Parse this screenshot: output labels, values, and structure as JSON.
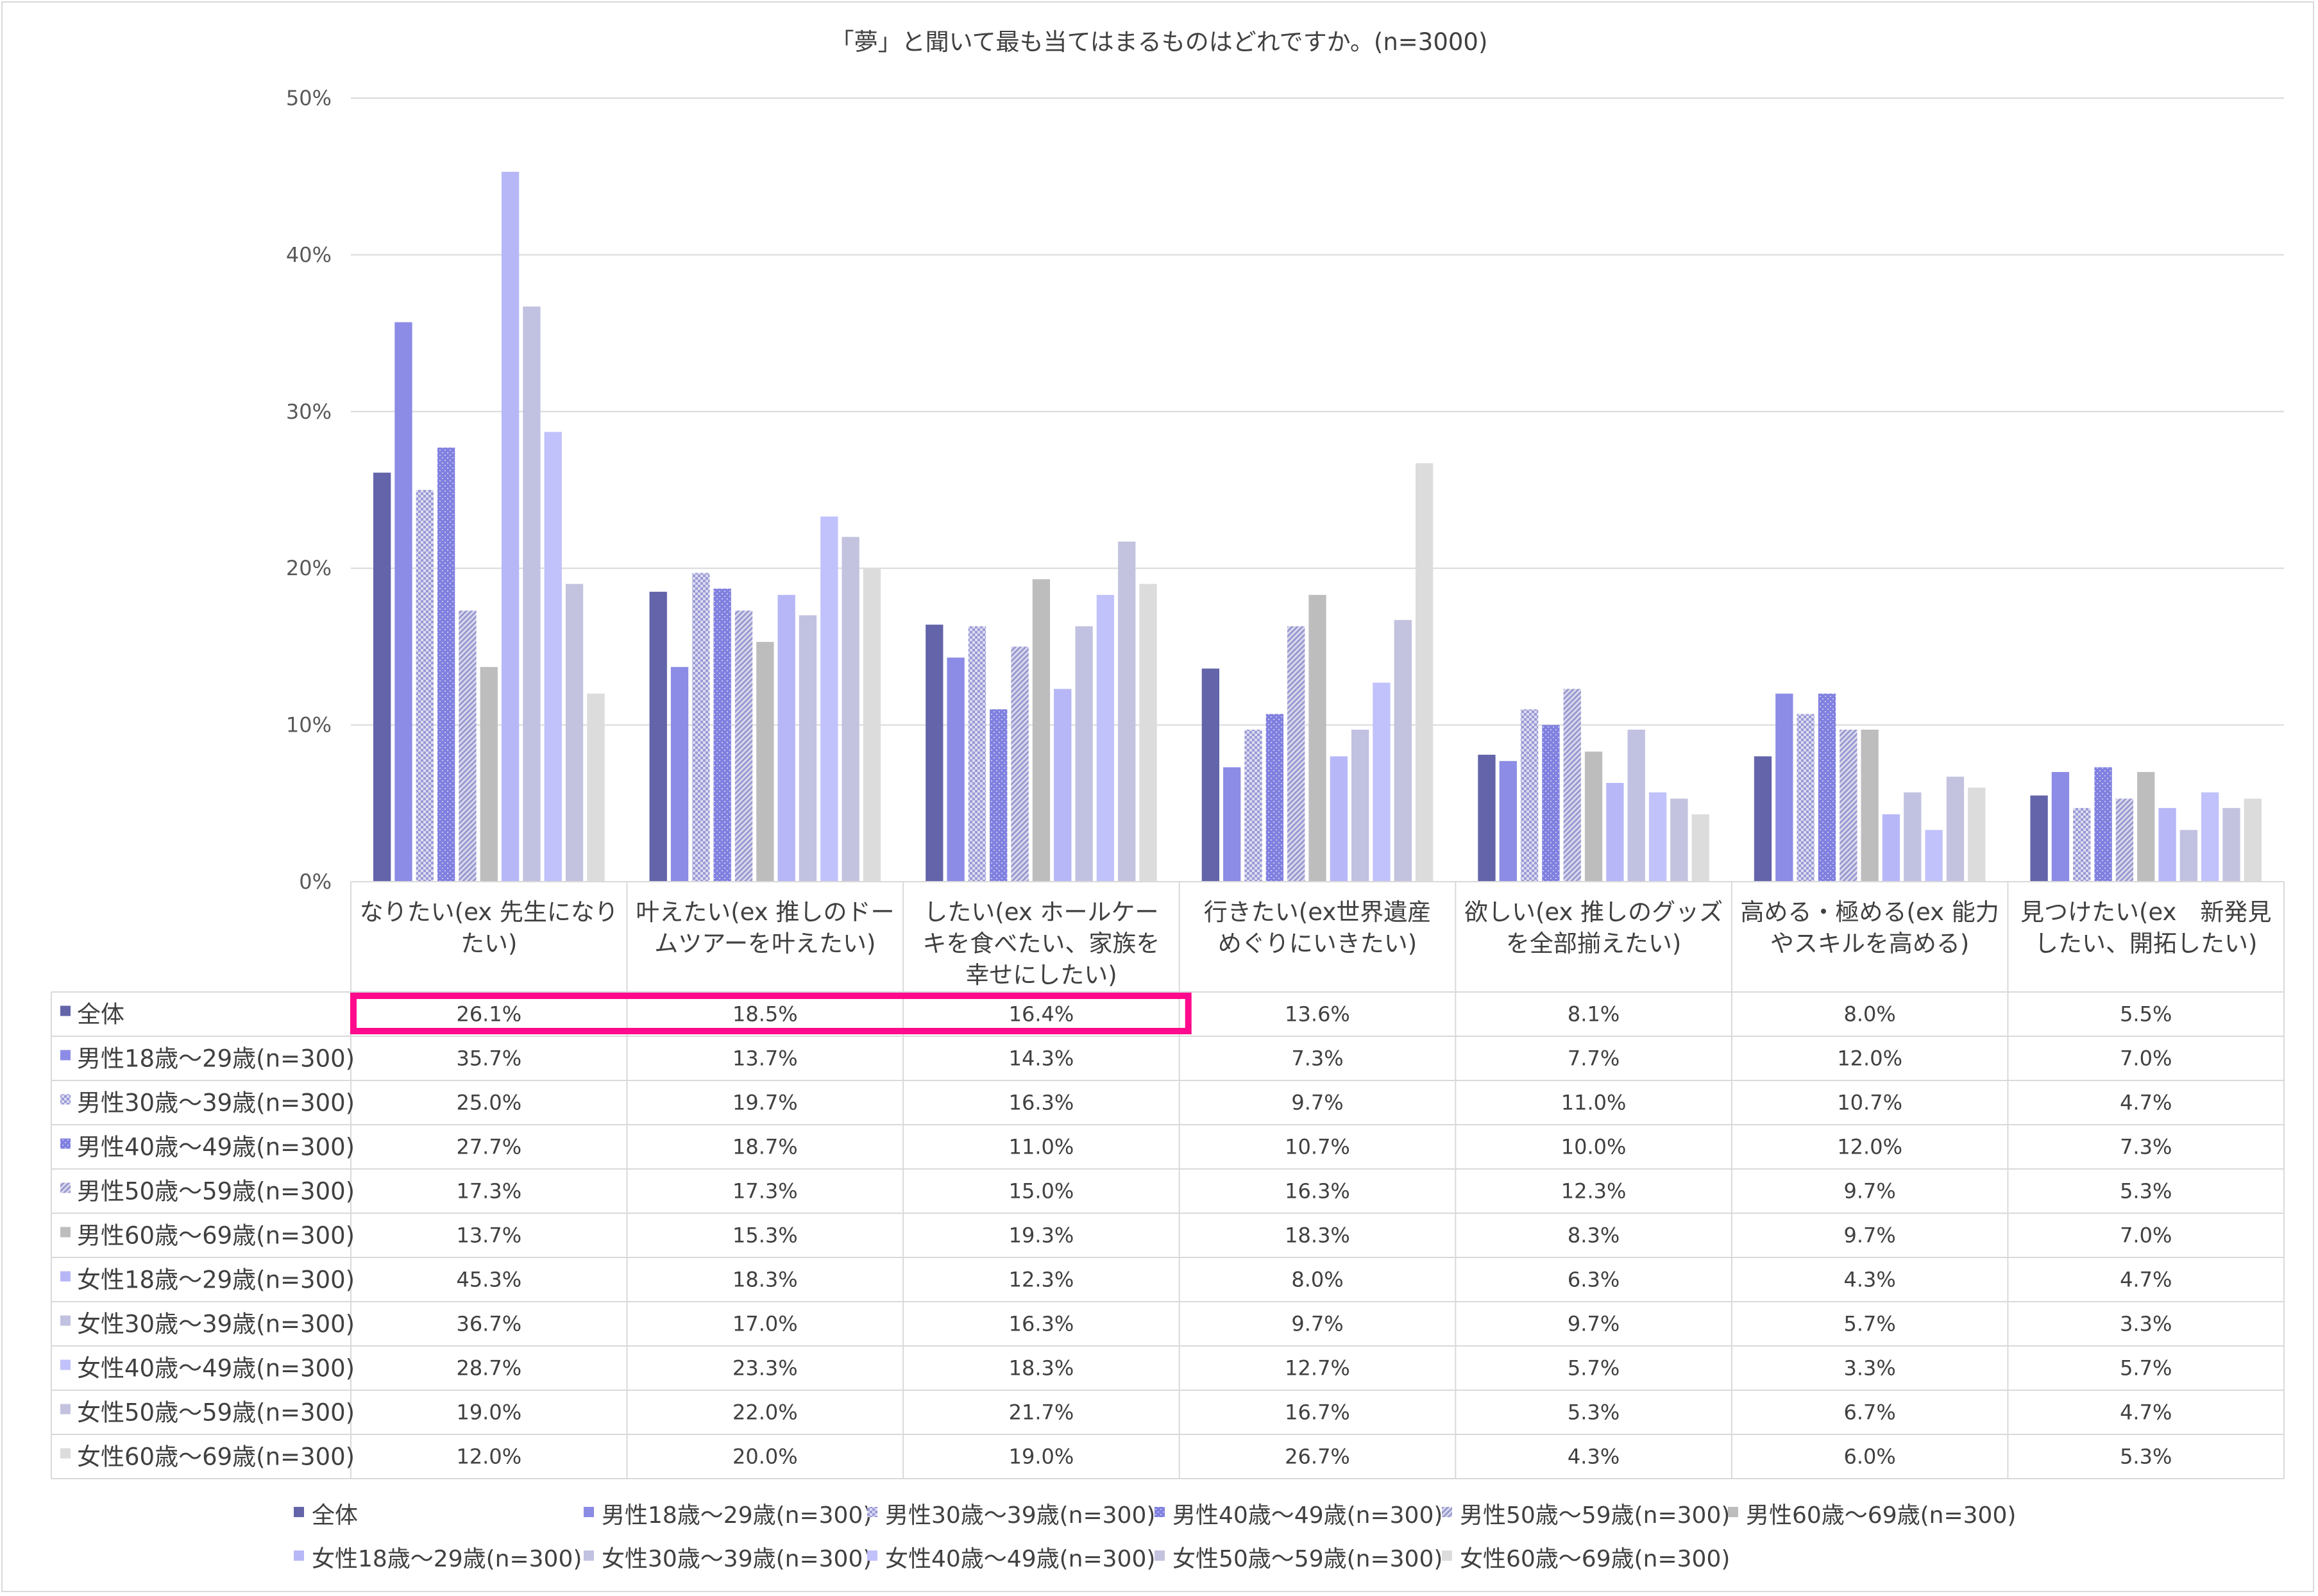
{
  "chart_data": {
    "type": "bar",
    "title": "「夢」と聞いて最も当てはまるものはどれですか。(n=3000)",
    "ylim": [
      0,
      50
    ],
    "yticks": [
      "0%",
      "10%",
      "20%",
      "30%",
      "40%",
      "50%"
    ],
    "grid": true,
    "legend_position": "bottom",
    "categories": [
      [
        "なりたい(ex 先生になり",
        "たい)"
      ],
      [
        "叶えたい(ex 推しのドー",
        "ムツアーを叶えたい)"
      ],
      [
        "したい(ex ホールケー",
        "キを食べたい、家族を",
        "幸せにしたい)"
      ],
      [
        "行きたい(ex世界遺産",
        "めぐりにいきたい)"
      ],
      [
        "欲しい(ex 推しのグッズ",
        "を全部揃えたい)"
      ],
      [
        "高める・極める(ex 能力",
        "やスキルを高める)"
      ],
      [
        "見つけたい(ex　新発見",
        "したい、開拓したい)"
      ]
    ],
    "series": [
      {
        "name": "全体",
        "color": "#6464aa",
        "pattern": "solid",
        "values": [
          26.1,
          18.5,
          16.4,
          13.6,
          8.1,
          8.0,
          5.5
        ],
        "labels": [
          "26.1%",
          "18.5%",
          "16.4%",
          "13.6%",
          "8.1%",
          "8.0%",
          "5.5%"
        ]
      },
      {
        "name": "男性18歳～29歳(n=300)",
        "color": "#8c8ce6",
        "pattern": "solid",
        "values": [
          35.7,
          13.7,
          14.3,
          7.3,
          7.7,
          12.0,
          7.0
        ],
        "labels": [
          "35.7%",
          "13.7%",
          "14.3%",
          "7.3%",
          "7.7%",
          "12.0%",
          "7.0%"
        ]
      },
      {
        "name": "男性30歳～39歳(n=300)",
        "color": "#9a9ad6",
        "pattern": "checker",
        "values": [
          25.0,
          19.7,
          16.3,
          9.7,
          11.0,
          10.7,
          4.7
        ],
        "labels": [
          "25.0%",
          "19.7%",
          "16.3%",
          "9.7%",
          "11.0%",
          "10.7%",
          "4.7%"
        ]
      },
      {
        "name": "男性40歳～49歳(n=300)",
        "color": "#8080e0",
        "pattern": "dots",
        "values": [
          27.7,
          18.7,
          11.0,
          10.7,
          10.0,
          12.0,
          7.3
        ],
        "labels": [
          "27.7%",
          "18.7%",
          "11.0%",
          "10.7%",
          "10.0%",
          "12.0%",
          "7.3%"
        ]
      },
      {
        "name": "男性50歳～59歳(n=300)",
        "color": "#9a9ad0",
        "pattern": "diag",
        "values": [
          17.3,
          17.3,
          15.0,
          16.3,
          12.3,
          9.7,
          5.3
        ],
        "labels": [
          "17.3%",
          "17.3%",
          "15.0%",
          "16.3%",
          "12.3%",
          "9.7%",
          "5.3%"
        ]
      },
      {
        "name": "男性60歳～69歳(n=300)",
        "color": "#bdbdbd",
        "pattern": "solid",
        "values": [
          13.7,
          15.3,
          19.3,
          18.3,
          8.3,
          9.7,
          7.0
        ],
        "labels": [
          "13.7%",
          "15.3%",
          "19.3%",
          "18.3%",
          "8.3%",
          "9.7%",
          "7.0%"
        ]
      },
      {
        "name": "女性18歳～29歳(n=300)",
        "color": "#b7b7f7",
        "pattern": "solid",
        "values": [
          45.3,
          18.3,
          12.3,
          8.0,
          6.3,
          4.3,
          4.7
        ],
        "labels": [
          "45.3%",
          "18.3%",
          "12.3%",
          "8.0%",
          "6.3%",
          "4.3%",
          "4.7%"
        ]
      },
      {
        "name": "女性30歳～39歳(n=300)",
        "color": "#c1c1e1",
        "pattern": "solid",
        "values": [
          36.7,
          17.0,
          16.3,
          9.7,
          9.7,
          5.7,
          3.3
        ],
        "labels": [
          "36.7%",
          "17.0%",
          "16.3%",
          "9.7%",
          "9.7%",
          "5.7%",
          "3.3%"
        ]
      },
      {
        "name": "女性40歳～49歳(n=300)",
        "color": "#c1c1fb",
        "pattern": "solid",
        "values": [
          28.7,
          23.3,
          18.3,
          12.7,
          5.7,
          3.3,
          5.7
        ],
        "labels": [
          "28.7%",
          "23.3%",
          "18.3%",
          "12.7%",
          "5.7%",
          "3.3%",
          "5.7%"
        ]
      },
      {
        "name": "女性50歳～59歳(n=300)",
        "color": "#c3c3df",
        "pattern": "solid",
        "values": [
          19.0,
          22.0,
          21.7,
          16.7,
          5.3,
          6.7,
          4.7
        ],
        "labels": [
          "19.0%",
          "22.0%",
          "21.7%",
          "16.7%",
          "5.3%",
          "6.7%",
          "4.7%"
        ]
      },
      {
        "name": "女性60歳～69歳(n=300)",
        "color": "#dcdcdc",
        "pattern": "solid",
        "values": [
          12.0,
          20.0,
          19.0,
          26.7,
          4.3,
          6.0,
          5.3
        ],
        "labels": [
          "12.0%",
          "20.0%",
          "19.0%",
          "26.7%",
          "4.3%",
          "6.0%",
          "5.3%"
        ]
      }
    ],
    "highlight": {
      "row": 0,
      "categories": [
        0,
        1,
        2
      ],
      "color": "#ff0a8c"
    }
  }
}
